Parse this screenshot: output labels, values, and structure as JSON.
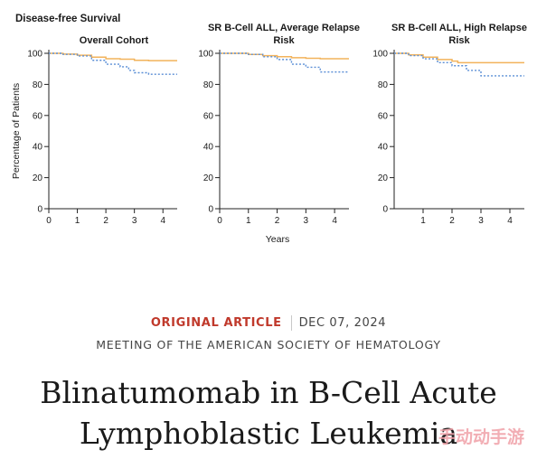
{
  "figure": {
    "title": "Disease-free Survival",
    "ylabel": "Percentage of Patients",
    "xlabel": "Years"
  },
  "chart_data": [
    {
      "type": "line",
      "title": "Overall Cohort",
      "xlim": [
        0,
        4.5
      ],
      "ylim": [
        0,
        100
      ],
      "xticks": [
        0,
        1,
        2,
        3,
        4
      ],
      "yticks": [
        0,
        20,
        40,
        60,
        80,
        100
      ],
      "series": [
        {
          "style": "solid",
          "color": "#f2b35b",
          "points": [
            [
              0,
              100
            ],
            [
              0.5,
              99.5
            ],
            [
              1,
              98.8
            ],
            [
              1.5,
              97.5
            ],
            [
              2,
              96.5
            ],
            [
              2.5,
              96.2
            ],
            [
              3,
              95.5
            ],
            [
              3.5,
              95.3
            ],
            [
              4.5,
              95.3
            ]
          ]
        },
        {
          "style": "dotted",
          "color": "#5b8fd6",
          "points": [
            [
              0,
              100
            ],
            [
              0.5,
              99.3
            ],
            [
              1,
              98.3
            ],
            [
              1.5,
              95.5
            ],
            [
              2,
              93
            ],
            [
              2.5,
              91.3
            ],
            [
              2.8,
              89
            ],
            [
              3,
              87.5
            ],
            [
              3.5,
              86.5
            ],
            [
              4.5,
              86.5
            ]
          ]
        }
      ]
    },
    {
      "type": "line",
      "title": "SR B-Cell ALL, Average Relapse Risk",
      "xlim": [
        0,
        4.5
      ],
      "ylim": [
        0,
        100
      ],
      "xticks": [
        0,
        1,
        2,
        3,
        4
      ],
      "yticks": [
        0,
        20,
        40,
        60,
        80,
        100
      ],
      "series": [
        {
          "style": "solid",
          "color": "#f2b35b",
          "points": [
            [
              0,
              100
            ],
            [
              1,
              99.3
            ],
            [
              1.5,
              98.5
            ],
            [
              2,
              97.8
            ],
            [
              2.5,
              97.2
            ],
            [
              3,
              96.8
            ],
            [
              3.5,
              96.5
            ],
            [
              4.5,
              96.5
            ]
          ]
        },
        {
          "style": "dotted",
          "color": "#5b8fd6",
          "points": [
            [
              0,
              100
            ],
            [
              1,
              99.3
            ],
            [
              1.5,
              97.8
            ],
            [
              2,
              96
            ],
            [
              2.5,
              93
            ],
            [
              3,
              91
            ],
            [
              3.5,
              88
            ],
            [
              4.5,
              88
            ]
          ]
        }
      ]
    },
    {
      "type": "line",
      "title": "SR B-Cell ALL, High Relapse Risk",
      "xlim": [
        0,
        4.5
      ],
      "ylim": [
        0,
        100
      ],
      "xticks": [
        1,
        2,
        3,
        4
      ],
      "yticks": [
        0,
        20,
        40,
        60,
        80,
        100
      ],
      "series": [
        {
          "style": "solid",
          "color": "#f2b35b",
          "points": [
            [
              0,
              100
            ],
            [
              0.5,
              99
            ],
            [
              1,
              97.5
            ],
            [
              1.5,
              96
            ],
            [
              2,
              95
            ],
            [
              2.2,
              94
            ],
            [
              4.5,
              94
            ]
          ]
        },
        {
          "style": "dotted",
          "color": "#5b8fd6",
          "points": [
            [
              0,
              100
            ],
            [
              0.5,
              98.5
            ],
            [
              1,
              96.5
            ],
            [
              1.5,
              94
            ],
            [
              2,
              92
            ],
            [
              2.5,
              89
            ],
            [
              3,
              85.5
            ],
            [
              4.5,
              85.5
            ]
          ]
        }
      ]
    }
  ],
  "article": {
    "type": "ORIGINAL ARTICLE",
    "date": "DEC 07, 2024",
    "meeting": "MEETING OF THE AMERICAN SOCIETY OF HEMATOLOGY",
    "title_line1": "Blinatumomab in B-Cell Acute",
    "title_line2": "Lymphoblastic Leukemia"
  },
  "watermark": "手动动手游"
}
